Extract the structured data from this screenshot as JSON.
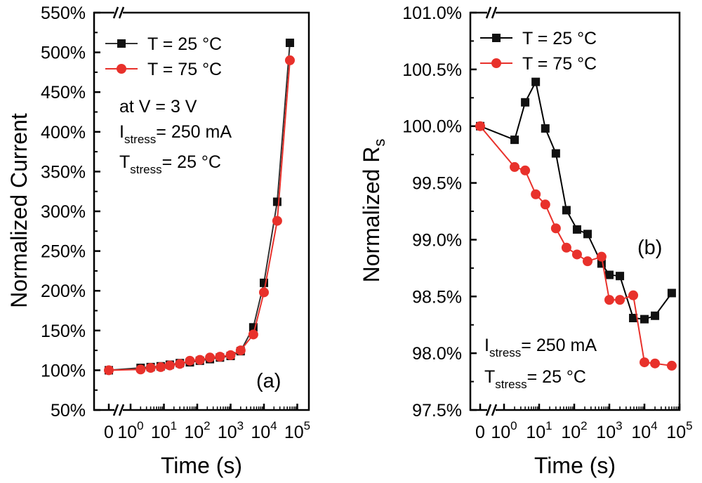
{
  "chart_data": [
    {
      "panel": "(a)",
      "type": "line",
      "xlabel": "Time (s)",
      "ylabel": "Normalized Current",
      "xscale": "log",
      "x_zero_label": "0",
      "x_tick_labels": [
        {
          "base": "10",
          "exp": "0"
        },
        {
          "base": "10",
          "exp": "1"
        },
        {
          "base": "10",
          "exp": "2"
        },
        {
          "base": "10",
          "exp": "3"
        },
        {
          "base": "10",
          "exp": "4"
        },
        {
          "base": "10",
          "exp": "5"
        }
      ],
      "y_ticks": [
        50,
        100,
        150,
        200,
        250,
        300,
        350,
        400,
        450,
        500,
        550
      ],
      "y_tick_labels": [
        "50%",
        "100%",
        "150%",
        "200%",
        "250%",
        "300%",
        "350%",
        "400%",
        "450%",
        "500%",
        "550%"
      ],
      "ylim": [
        50,
        550
      ],
      "legend_position": "top-left",
      "annotations": {
        "line1": "at V = 3 V",
        "line2_main": "I",
        "line2_sub": "stress",
        "line2_rest": "= 250 mA",
        "line3_main": "T",
        "line3_sub": "stress",
        "line3_rest": "= 25 °C"
      },
      "series": [
        {
          "name": "T = 25 °C",
          "color": "#333333",
          "marker": "square",
          "x": [
            0,
            2,
            4,
            8,
            15,
            30,
            60,
            120,
            240,
            480,
            1000,
            2000,
            4800,
            10000,
            25000,
            60000
          ],
          "y": [
            100,
            103,
            104,
            105,
            107,
            109,
            110,
            112,
            114,
            116,
            118,
            124,
            154,
            210,
            312,
            512
          ]
        },
        {
          "name": "T = 75 °C",
          "color": "#e8312b",
          "marker": "circle",
          "x": [
            0,
            2,
            4,
            8,
            15,
            30,
            60,
            120,
            240,
            480,
            1000,
            2000,
            4800,
            10000,
            25000,
            60000
          ],
          "y": [
            100,
            101,
            103,
            104,
            106,
            108,
            112,
            113,
            116,
            117,
            119,
            125,
            145,
            198,
            288,
            490
          ]
        }
      ]
    },
    {
      "panel": "(b)",
      "type": "line",
      "xlabel": "Time (s)",
      "ylabel_main": "Normalized R",
      "ylabel_sub": "s",
      "xscale": "log",
      "x_zero_label": "0",
      "x_tick_labels": [
        {
          "base": "10",
          "exp": "0"
        },
        {
          "base": "10",
          "exp": "1"
        },
        {
          "base": "10",
          "exp": "2"
        },
        {
          "base": "10",
          "exp": "3"
        },
        {
          "base": "10",
          "exp": "4"
        },
        {
          "base": "10",
          "exp": "5"
        }
      ],
      "y_ticks": [
        97.5,
        98.0,
        98.5,
        99.0,
        99.5,
        100.0,
        100.5,
        101.0
      ],
      "y_tick_labels": [
        "97.5%",
        "98.0%",
        "98.5%",
        "99.0%",
        "99.5%",
        "100.0%",
        "100.5%",
        "101.0%"
      ],
      "ylim": [
        97.5,
        101.0
      ],
      "legend_position": "top-left",
      "annotations": {
        "line1_main": "I",
        "line1_sub": "stress",
        "line1_rest": "= 250 mA",
        "line2_main": "T",
        "line2_sub": "stress",
        "line2_rest": "= 25 °C"
      },
      "series": [
        {
          "name": "T = 25 °C",
          "color": "#000000",
          "marker": "square",
          "x": [
            0,
            2,
            4,
            8,
            15,
            30,
            60,
            120,
            240,
            600,
            1000,
            2000,
            4800,
            10000,
            20000,
            60000
          ],
          "y": [
            100.0,
            99.88,
            100.21,
            100.39,
            99.98,
            99.76,
            99.26,
            99.09,
            99.05,
            98.79,
            98.69,
            98.68,
            98.31,
            98.3,
            98.33,
            98.53
          ]
        },
        {
          "name": "T = 75 °C",
          "color": "#e8312b",
          "marker": "circle",
          "x": [
            0,
            2,
            4,
            8,
            15,
            30,
            60,
            120,
            240,
            600,
            1000,
            2000,
            4800,
            10000,
            20000,
            60000
          ],
          "y": [
            100.0,
            99.64,
            99.61,
            99.4,
            99.31,
            99.1,
            98.93,
            98.87,
            98.81,
            98.85,
            98.47,
            98.47,
            98.51,
            97.92,
            97.91,
            97.89
          ]
        }
      ]
    }
  ]
}
